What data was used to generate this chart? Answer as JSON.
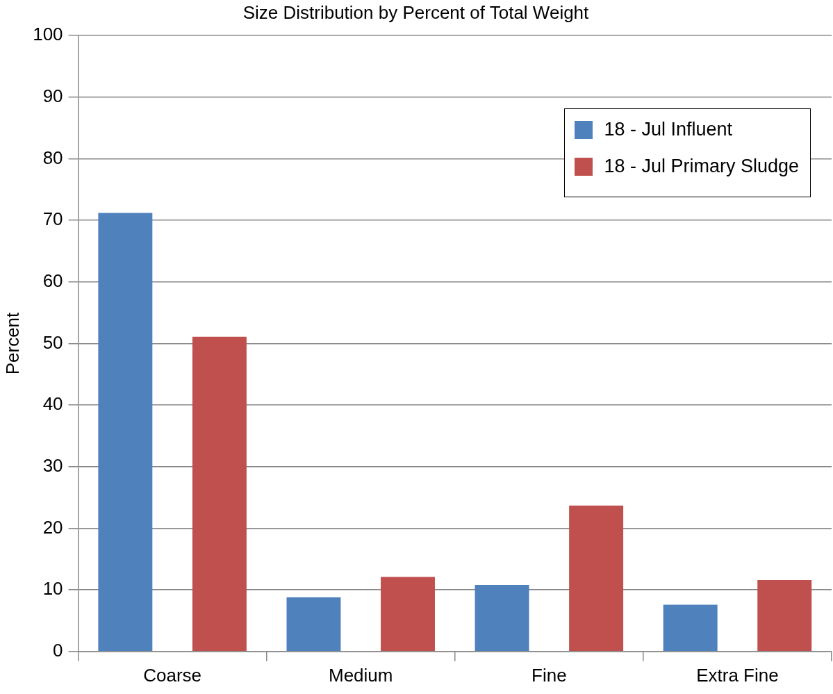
{
  "chart_data": {
    "type": "bar",
    "title": "Size Distribution by Percent of Total Weight",
    "ylabel": "Percent",
    "categories": [
      "Coarse",
      "Medium",
      "Fine",
      "Extra Fine"
    ],
    "series": [
      {
        "name": "18 - Jul Influent",
        "color": "#4f81bd",
        "values": [
          71.2,
          8.8,
          10.8,
          7.6
        ]
      },
      {
        "name": "18 - Jul Primary Sludge",
        "color": "#c0504d",
        "values": [
          51.1,
          12.1,
          23.7,
          11.6
        ]
      }
    ],
    "ylim": [
      0,
      100
    ],
    "yticks": [
      0,
      10,
      20,
      30,
      40,
      50,
      60,
      70,
      80,
      90,
      100
    ],
    "grid": "y",
    "legend": "top right"
  }
}
